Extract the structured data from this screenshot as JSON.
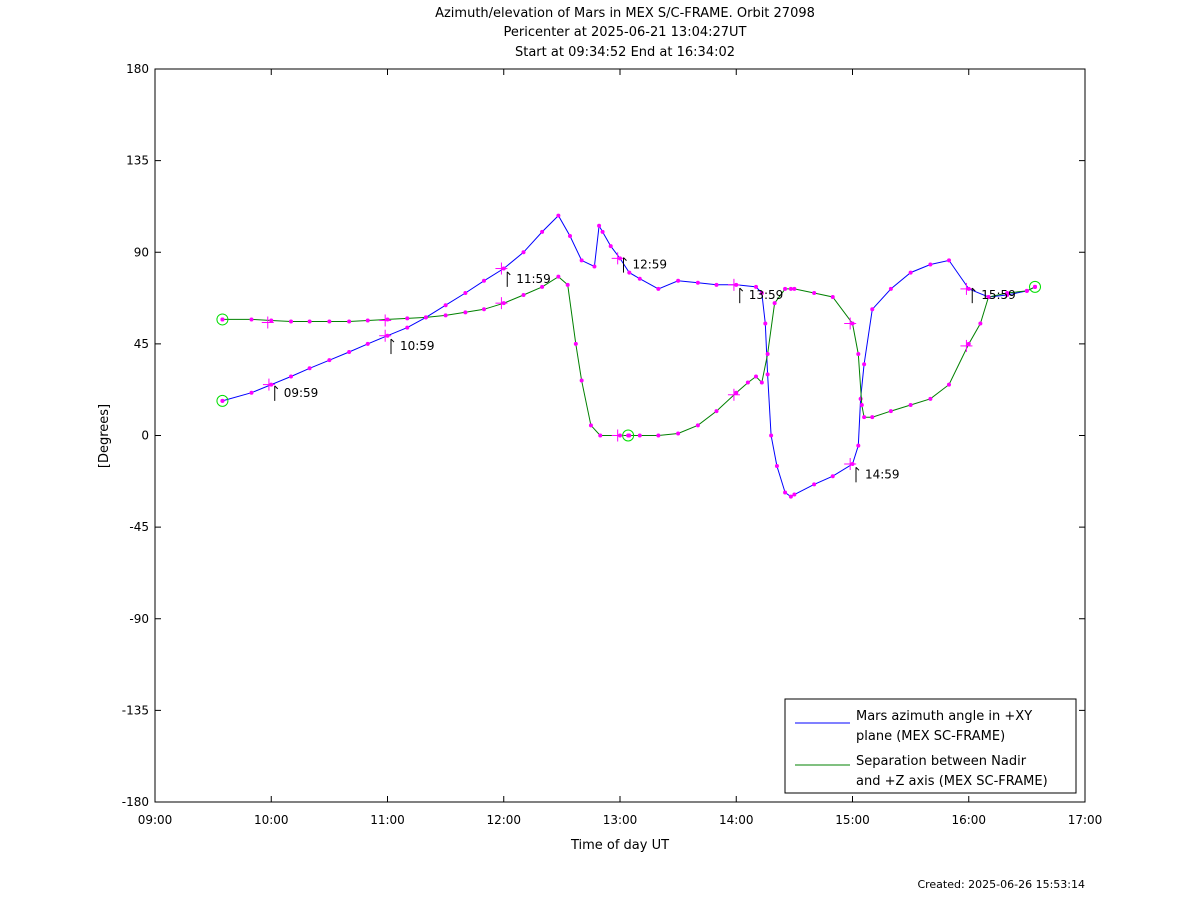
{
  "chart_data": {
    "type": "line",
    "title_lines": [
      "Azimuth/elevation of Mars in MEX S/C-FRAME.  Orbit 27098",
      "Pericenter at 2025-06-21 13:04:27UT",
      "Start at 09:34:52 End at 16:34:02"
    ],
    "xlabel": "Time of day UT",
    "ylabel": "[Degrees]",
    "xlim": [
      9.0,
      17.0
    ],
    "ylim": [
      -180,
      180
    ],
    "x_ticks": [
      {
        "v": 9,
        "label": "09:00"
      },
      {
        "v": 10,
        "label": "10:00"
      },
      {
        "v": 11,
        "label": "11:00"
      },
      {
        "v": 12,
        "label": "12:00"
      },
      {
        "v": 13,
        "label": "13:00"
      },
      {
        "v": 14,
        "label": "14:00"
      },
      {
        "v": 15,
        "label": "15:00"
      },
      {
        "v": 16,
        "label": "16:00"
      },
      {
        "v": 17,
        "label": "17:00"
      }
    ],
    "y_ticks": [
      {
        "v": 180,
        "label": "180"
      },
      {
        "v": 135,
        "label": "135"
      },
      {
        "v": 90,
        "label": "90"
      },
      {
        "v": 45,
        "label": "45"
      },
      {
        "v": 0,
        "label": "0"
      },
      {
        "v": -45,
        "label": "-45"
      },
      {
        "v": -90,
        "label": "-90"
      },
      {
        "v": -135,
        "label": "-135"
      },
      {
        "v": -180,
        "label": "-180"
      }
    ],
    "grid": false,
    "legend_position": "bottom-right",
    "series": [
      {
        "name": "Mars azimuth angle in +XY plane (MEX SC-FRAME)",
        "legend_lines": [
          "Mars azimuth angle in +XY",
          "plane (MEX SC-FRAME)"
        ],
        "color": "#0000ff",
        "x": [
          9.58,
          9.83,
          10.0,
          10.17,
          10.33,
          10.5,
          10.67,
          10.83,
          11.0,
          11.17,
          11.33,
          11.5,
          11.67,
          11.83,
          12.0,
          12.17,
          12.33,
          12.47,
          12.57,
          12.67,
          12.78,
          12.82,
          12.85,
          12.92,
          13.0,
          13.08,
          13.17,
          13.33,
          13.5,
          13.67,
          13.83,
          14.0,
          14.17,
          14.22,
          14.25,
          14.27,
          14.3,
          14.35,
          14.42,
          14.47,
          14.5,
          14.67,
          14.83,
          15.0,
          15.05,
          15.07,
          15.1,
          15.17,
          15.33,
          15.5,
          15.67,
          15.83,
          16.0,
          16.17,
          16.33,
          16.5,
          16.57
        ],
        "y": [
          17,
          21,
          25,
          29,
          33,
          37,
          41,
          45,
          49,
          53,
          58,
          64,
          70,
          76,
          82,
          90,
          100,
          108,
          98,
          86,
          83,
          103,
          100,
          93,
          87,
          80,
          77,
          72,
          76,
          75,
          74,
          74,
          73,
          70,
          55,
          30,
          0,
          -15,
          -28,
          -30,
          -29,
          -24,
          -20,
          -14,
          -5,
          18,
          35,
          62,
          72,
          80,
          84,
          86,
          72,
          68,
          69,
          71,
          73
        ]
      },
      {
        "name": "Separation between Nadir and +Z axis (MEX SC-FRAME)",
        "legend_lines": [
          "Separation between Nadir",
          "and +Z axis (MEX SC-FRAME)"
        ],
        "color": "#008000",
        "x": [
          9.58,
          9.83,
          10.0,
          10.17,
          10.33,
          10.5,
          10.67,
          10.83,
          11.0,
          11.17,
          11.33,
          11.5,
          11.67,
          11.83,
          12.0,
          12.17,
          12.33,
          12.47,
          12.55,
          12.62,
          12.67,
          12.75,
          12.83,
          13.0,
          13.08,
          13.17,
          13.33,
          13.5,
          13.67,
          13.83,
          14.0,
          14.1,
          14.17,
          14.22,
          14.27,
          14.33,
          14.42,
          14.47,
          14.5,
          14.67,
          14.83,
          15.0,
          15.05,
          15.08,
          15.1,
          15.17,
          15.33,
          15.5,
          15.67,
          15.83,
          16.0,
          16.1,
          16.17,
          16.33,
          16.5,
          16.57
        ],
        "y": [
          57,
          57,
          56.5,
          56,
          56,
          56,
          56,
          56.5,
          57,
          57.5,
          58,
          59,
          60.5,
          62,
          65,
          69,
          73,
          78,
          74,
          45,
          27,
          5,
          0,
          0,
          0,
          0,
          0,
          1,
          5,
          12,
          21,
          26,
          29,
          26,
          40,
          65,
          72,
          72,
          72,
          70,
          68,
          55,
          40,
          15,
          9,
          9,
          12,
          15,
          18,
          25,
          45,
          55,
          68,
          70,
          71,
          73
        ]
      }
    ],
    "markers": {
      "plus": [
        {
          "x": 9.97,
          "y": 55.5
        },
        {
          "x": 10.98,
          "y": 56.5
        },
        {
          "x": 11.98,
          "y": 65
        },
        {
          "x": 9.98,
          "y": 25
        },
        {
          "x": 10.98,
          "y": 49
        },
        {
          "x": 11.98,
          "y": 82
        },
        {
          "x": 12.98,
          "y": 0
        },
        {
          "x": 12.98,
          "y": 87
        },
        {
          "x": 13.98,
          "y": 20
        },
        {
          "x": 13.98,
          "y": 74
        },
        {
          "x": 14.98,
          "y": 55
        },
        {
          "x": 14.98,
          "y": -14
        },
        {
          "x": 15.98,
          "y": 44
        },
        {
          "x": 15.98,
          "y": 72
        }
      ],
      "circle": [
        {
          "x": 9.58,
          "y": 57
        },
        {
          "x": 9.58,
          "y": 17
        },
        {
          "x": 13.07,
          "y": 0
        },
        {
          "x": 16.57,
          "y": 73
        }
      ]
    },
    "annotations": [
      {
        "label": "09:59",
        "x": 10.03,
        "y": 17
      },
      {
        "label": "10:59",
        "x": 11.03,
        "y": 40
      },
      {
        "label": "11:59",
        "x": 12.03,
        "y": 73
      },
      {
        "label": "12:59",
        "x": 13.03,
        "y": 80
      },
      {
        "label": "13:59",
        "x": 14.03,
        "y": 65
      },
      {
        "label": "14:59",
        "x": 15.03,
        "y": -23
      },
      {
        "label": "15:59",
        "x": 16.03,
        "y": 65
      }
    ]
  },
  "footer": {
    "created": "Created: 2025-06-26 15:53:14"
  }
}
